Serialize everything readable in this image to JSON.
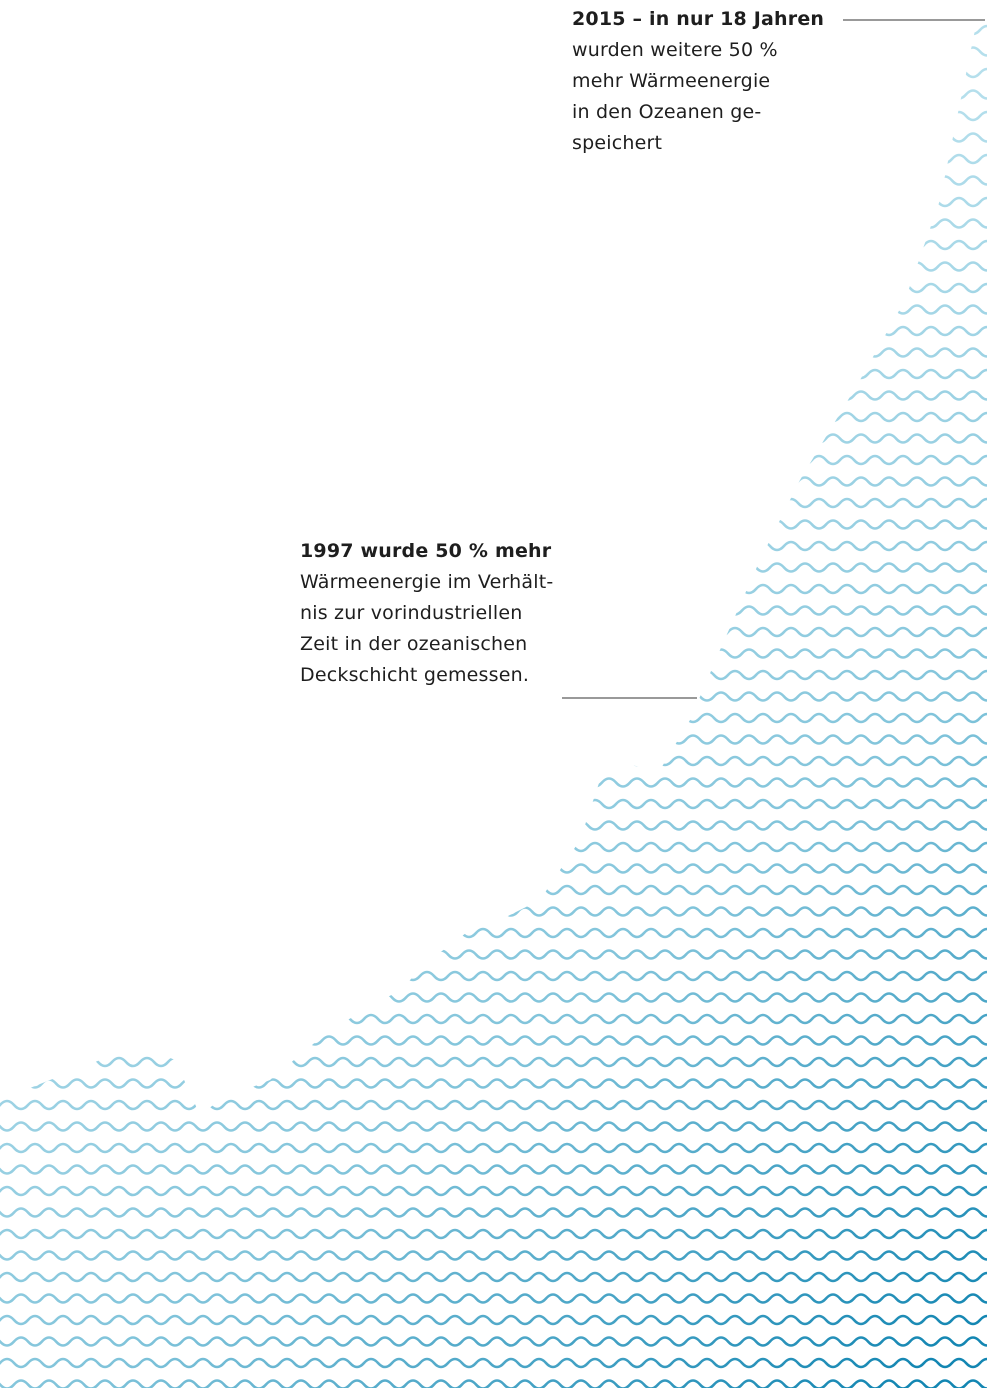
{
  "annotations": [
    {
      "heading": "2015 – in nur 18 Jahren",
      "lines": [
        "wurden weitere 50 %",
        "mehr Wärmeenergie",
        "in den Ozeanen ge-",
        "speichert"
      ]
    },
    {
      "heading": "1997 wurde 50 % mehr",
      "lines": [
        "Wärmeenergie im Verhält-",
        "nis zur vorindustriellen",
        "Zeit in der ozeanischen",
        "Deckschicht gemessen."
      ]
    }
  ]
}
